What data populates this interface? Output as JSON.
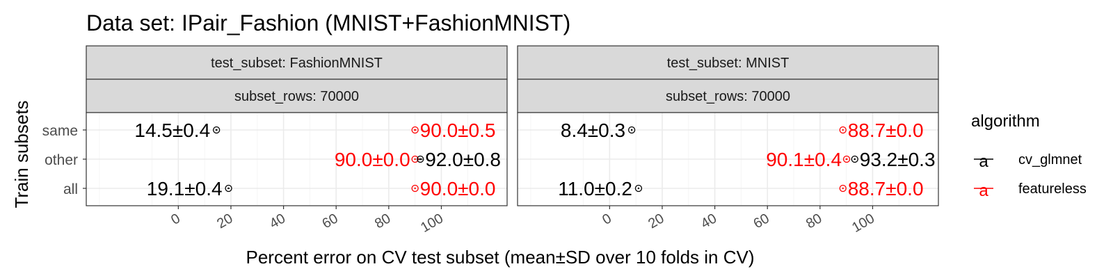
{
  "chart_data": {
    "type": "scatter",
    "title": "Data set: IPair_Fashion (MNIST+FashionMNIST)",
    "xlabel": "Percent error on CV test subset (mean±SD over 10 folds in CV)",
    "ylabel": "Train subsets",
    "xlim": [
      -35,
      125
    ],
    "xticks": [
      0,
      20,
      40,
      60,
      80,
      100
    ],
    "categories": [
      "same",
      "other",
      "all"
    ],
    "grid": true,
    "legend": {
      "title": "algorithm",
      "position": "right",
      "entries": [
        {
          "name": "cv_glmnet",
          "color": "#000000",
          "key": "a"
        },
        {
          "name": "featureless",
          "color": "#ff0000",
          "key": "a"
        }
      ]
    },
    "panels": [
      {
        "strip_top": "test_subset: FashionMNIST",
        "strip_bottom": "subset_rows: 70000",
        "points": [
          {
            "subset": "same",
            "algorithm": "cv_glmnet",
            "mean": 14.5,
            "sd": 0.4,
            "label": "14.5±0.4"
          },
          {
            "subset": "same",
            "algorithm": "featureless",
            "mean": 90.0,
            "sd": 0.5,
            "label": "90.0±0.5"
          },
          {
            "subset": "other",
            "algorithm": "featureless",
            "mean": 90.0,
            "sd": 0.0,
            "label": "90.0±0.0"
          },
          {
            "subset": "other",
            "algorithm": "cv_glmnet",
            "mean": 92.0,
            "sd": 0.8,
            "label": "92.0±0.8"
          },
          {
            "subset": "all",
            "algorithm": "cv_glmnet",
            "mean": 19.1,
            "sd": 0.4,
            "label": "19.1±0.4"
          },
          {
            "subset": "all",
            "algorithm": "featureless",
            "mean": 90.0,
            "sd": 0.0,
            "label": "90.0±0.0"
          }
        ]
      },
      {
        "strip_top": "test_subset: MNIST",
        "strip_bottom": "subset_rows: 70000",
        "points": [
          {
            "subset": "same",
            "algorithm": "cv_glmnet",
            "mean": 8.4,
            "sd": 0.3,
            "label": "8.4±0.3"
          },
          {
            "subset": "same",
            "algorithm": "featureless",
            "mean": 88.7,
            "sd": 0.0,
            "label": "88.7±0.0"
          },
          {
            "subset": "other",
            "algorithm": "featureless",
            "mean": 90.1,
            "sd": 0.4,
            "label": "90.1±0.4"
          },
          {
            "subset": "other",
            "algorithm": "cv_glmnet",
            "mean": 93.2,
            "sd": 0.3,
            "label": "93.2±0.3"
          },
          {
            "subset": "all",
            "algorithm": "cv_glmnet",
            "mean": 11.0,
            "sd": 0.2,
            "label": "11.0±0.2"
          },
          {
            "subset": "all",
            "algorithm": "featureless",
            "mean": 88.7,
            "sd": 0.0,
            "label": "88.7±0.0"
          }
        ]
      }
    ]
  },
  "colors": {
    "cv_glmnet": "#000000",
    "featureless": "#ff0000",
    "strip_fill": "#d9d9d9",
    "grid_major": "#ebebeb",
    "grid_minor": "#f5f5f5"
  }
}
